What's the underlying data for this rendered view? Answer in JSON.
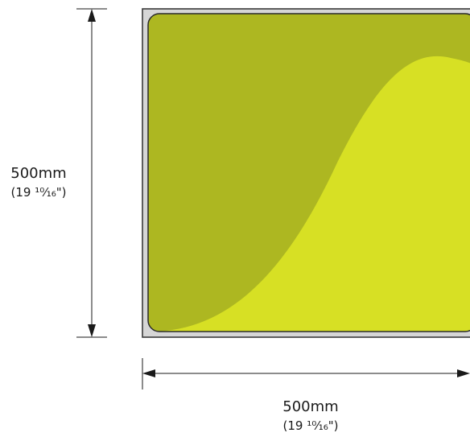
{
  "height_dimension": {
    "value": "500mm",
    "imperial": "(19 ¹⁰⁄₁₆\")"
  },
  "width_dimension": {
    "value": "500mm",
    "imperial": "(19 ¹⁰⁄₁₆\")"
  },
  "colors": {
    "frame_fill": "#d6d6d6",
    "frame_stroke": "#3a3a3a",
    "panel_dark": "#adb721",
    "panel_light": "#d7e024",
    "panel_border": "#2a2a2a",
    "dimension_line": "#1a1a1a"
  }
}
